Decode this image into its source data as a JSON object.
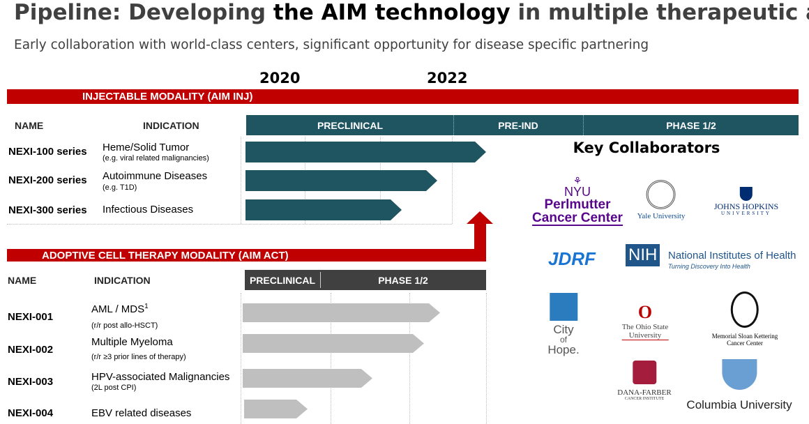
{
  "title": {
    "lead": "Pipeline: Developing ",
    "emphasis": "the AIM technology",
    "tail": " in multiple therapeutic areas"
  },
  "subtitle": "Early collaboration with world-class centers, significant opportunity for disease specific partnering",
  "years": [
    "2020",
    "2022"
  ],
  "injectable": {
    "header": "INJECTABLE MODALITY (AIM INJ)",
    "columns": [
      "NAME",
      "INDICATION"
    ],
    "phases": [
      "PRECLINICAL",
      "PRE-IND",
      "PHASE 1/2"
    ],
    "rows": [
      {
        "name": "NEXI-100 series",
        "indication": "Heme/Solid Tumor",
        "note": "(e.g. viral related malignancies)"
      },
      {
        "name": "NEXI-200 series",
        "indication": "Autoimmune Diseases",
        "note": "(e.g. T1D)"
      },
      {
        "name": "NEXI-300 series",
        "indication": "Infectious Diseases"
      }
    ]
  },
  "adoptive": {
    "header": "ADOPTIVE CELL THERAPY MODALITY (AIM ACT)",
    "columns": [
      "NAME",
      "INDICATION"
    ],
    "phases": [
      "PRECLINICAL",
      "PHASE 1/2"
    ],
    "rows": [
      {
        "name": "NEXI-001",
        "indication": "AML / MDS",
        "footnote": "1",
        "note": "(r/r post allo-HSCT)"
      },
      {
        "name": "NEXI-002",
        "indication": "Multiple Myeloma",
        "note": "(r/r ≥3 prior lines of therapy)"
      },
      {
        "name": "NEXI-003",
        "indication": "HPV-associated Malignancies",
        "note": "(2L post CPI)"
      },
      {
        "name": "NEXI-004",
        "indication": "EBV related diseases"
      }
    ]
  },
  "collaborators": {
    "title": "Key Collaborators",
    "logos": {
      "nyu": [
        "NYU",
        "Perlmutter",
        "Cancer Center"
      ],
      "yale": [
        "Yale University"
      ],
      "jhu": [
        "JOHNS HOPKINS",
        "UNIVERSITY"
      ],
      "jdrf": [
        "JDRF"
      ],
      "nih": [
        "NIH",
        "National Institutes of Health",
        "Turning Discovery Into Health"
      ],
      "coh": [
        "City",
        "of",
        "Hope."
      ],
      "osu": [
        "The Ohio State",
        "University"
      ],
      "mskcc": [
        "Memorial Sloan Kettering",
        "Cancer Center"
      ],
      "dfci": [
        "DANA-FARBER",
        "CANCER INSTITUTE"
      ],
      "columbia": [
        "Columbia University"
      ]
    }
  }
}
